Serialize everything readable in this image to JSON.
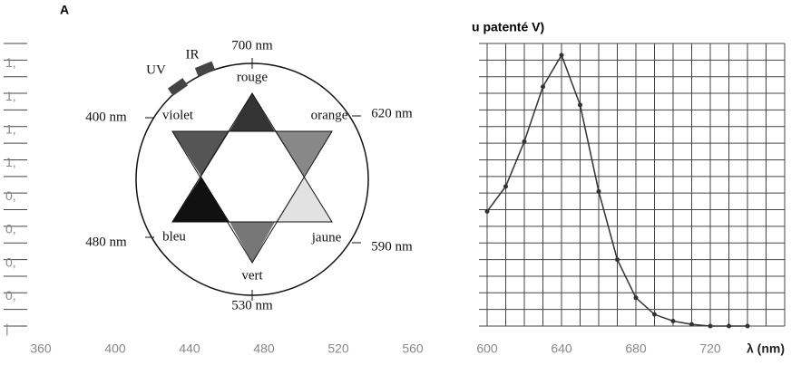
{
  "chart_data": {
    "type": "line",
    "title": "u patenté V)",
    "corner_label": "A",
    "xlabel": "λ (nm)",
    "x": [
      600,
      610,
      620,
      630,
      640,
      650,
      660,
      670,
      680,
      690,
      700,
      710,
      720,
      730,
      740
    ],
    "values": [
      0.69,
      0.84,
      1.11,
      1.44,
      1.63,
      1.33,
      0.81,
      0.4,
      0.17,
      0.07,
      0.03,
      0.01,
      0,
      0,
      0
    ],
    "color": "#333333",
    "xlim": [
      340,
      760
    ],
    "xticks": [
      360,
      400,
      440,
      480,
      520,
      560,
      600,
      640,
      680,
      720
    ],
    "ylim": [
      0,
      1.7
    ],
    "yticks": [
      {
        "value": 1.6,
        "label": "1,"
      },
      {
        "value": 1.4,
        "label": "1,"
      },
      {
        "value": 1.2,
        "label": "1,"
      },
      {
        "value": 1.0,
        "label": "1,"
      },
      {
        "value": 0.8,
        "label": "0,"
      },
      {
        "value": 0.6,
        "label": "0,"
      },
      {
        "value": 0.4,
        "label": "0,"
      },
      {
        "value": 0.2,
        "label": "0,"
      },
      {
        "value": 0,
        "label": "|"
      }
    ],
    "grid": true
  },
  "color_wheel": {
    "colors": [
      "rouge",
      "orange",
      "jaune",
      "vert",
      "bleu",
      "violet"
    ],
    "wavelengths": [
      "700 nm",
      "620 nm",
      "590 nm",
      "530 nm",
      "480 nm",
      "400 nm"
    ],
    "uv": "UV",
    "ir": "IR"
  }
}
